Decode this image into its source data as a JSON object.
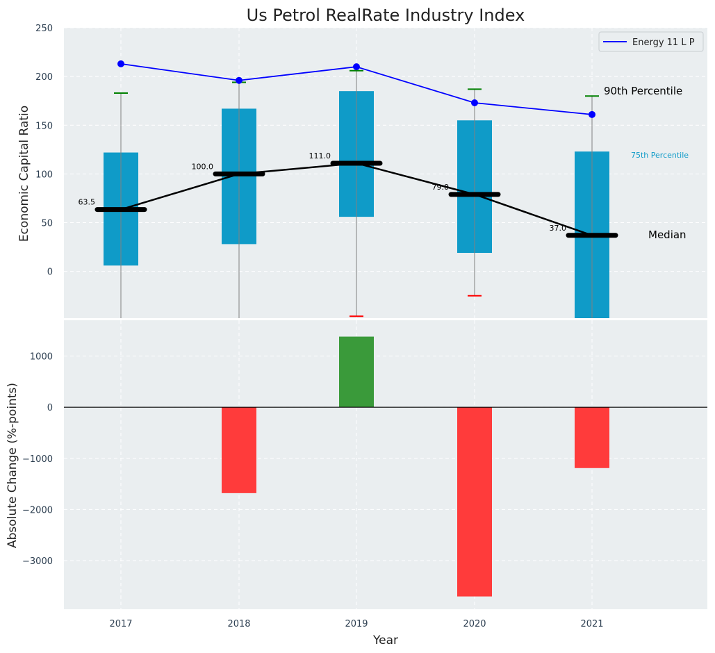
{
  "chart_data": {
    "type": "boxplot+line+bar",
    "title": "Us Petrol RealRate Industry Index",
    "categories": [
      "2017",
      "2018",
      "2019",
      "2020",
      "2021"
    ],
    "top": {
      "ylabel": "Economic Capital Ratio",
      "ylim": [
        -48,
        250
      ],
      "yticks": [
        0,
        50,
        100,
        150,
        200,
        250
      ],
      "boxes": [
        {
          "q1": 6,
          "q3": 122,
          "median": 63.5,
          "whisker_low": -48,
          "whisker_high": 183
        },
        {
          "q1": 28,
          "q3": 167,
          "median": 100.0,
          "whisker_low": -48,
          "whisker_high": 194
        },
        {
          "q1": 56,
          "q3": 185,
          "median": 111.0,
          "whisker_low": -46,
          "whisker_high": 206
        },
        {
          "q1": 19,
          "q3": 155,
          "median": 79.0,
          "whisker_low": -25,
          "whisker_high": 187
        },
        {
          "q1": -48,
          "q3": 123,
          "median": 37.0,
          "whisker_low": -48,
          "whisker_high": 180
        }
      ],
      "median_labels": [
        "63.5",
        "100.0",
        "111.0",
        "79.0",
        "37.0"
      ],
      "series": [
        {
          "name": "Energy 11 L P",
          "values": [
            213,
            196,
            210,
            173,
            161
          ],
          "color": "#0000ff"
        }
      ],
      "annotations": {
        "p90": "90th Percentile",
        "p75": "75th Percentile",
        "median": "Median"
      },
      "colors": {
        "box": "#0f9bc8",
        "median": "#000000",
        "cap_high": "#008000",
        "cap_low": "#ff0000",
        "whisker": "#808080"
      }
    },
    "bottom": {
      "ylabel": "Absolute Change (%-points)",
      "xlabel": "Year",
      "ylim": [
        -3950,
        1700
      ],
      "yticks": [
        -3000,
        -2000,
        -1000,
        0,
        1000
      ],
      "ytick_labels": [
        "−3000",
        "−2000",
        "−1000",
        "0",
        "1000"
      ],
      "values": [
        0,
        -1680,
        1380,
        -3700,
        -1190
      ],
      "colors": {
        "positive": "#3a9a3a",
        "negative": "#ff3b3b"
      }
    },
    "grid": true,
    "legend": "top-right"
  }
}
